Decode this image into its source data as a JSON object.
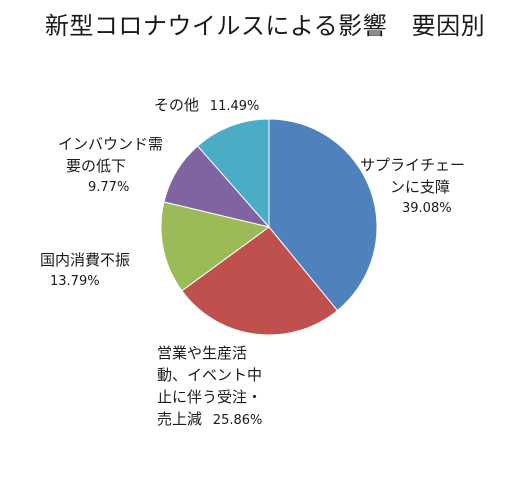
{
  "chart_data": {
    "type": "pie",
    "title": "新型コロナウイルスによる影響　要因別",
    "start_angle_deg": 0,
    "direction": "clockwise",
    "slices": [
      {
        "label_lines": [
          "サプライチェー",
          "ンに支障"
        ],
        "value": 39.08,
        "value_label": "39.08%",
        "color": "#4f81bd"
      },
      {
        "label_lines": [
          "営業や生産活",
          "動、イベント中",
          "止に伴う受注・",
          "売上減"
        ],
        "value": 25.86,
        "value_label": "25.86%",
        "color": "#c0504d"
      },
      {
        "label_lines": [
          "国内消費不振"
        ],
        "value": 13.79,
        "value_label": "13.79%",
        "color": "#9bbb59"
      },
      {
        "label_lines": [
          "インバウンド需",
          "要の低下"
        ],
        "value": 9.77,
        "value_label": "9.77%",
        "color": "#8064a2"
      },
      {
        "label_lines": [
          "その他"
        ],
        "value": 11.49,
        "value_label": "11.49%",
        "color": "#4bacc6"
      }
    ]
  }
}
